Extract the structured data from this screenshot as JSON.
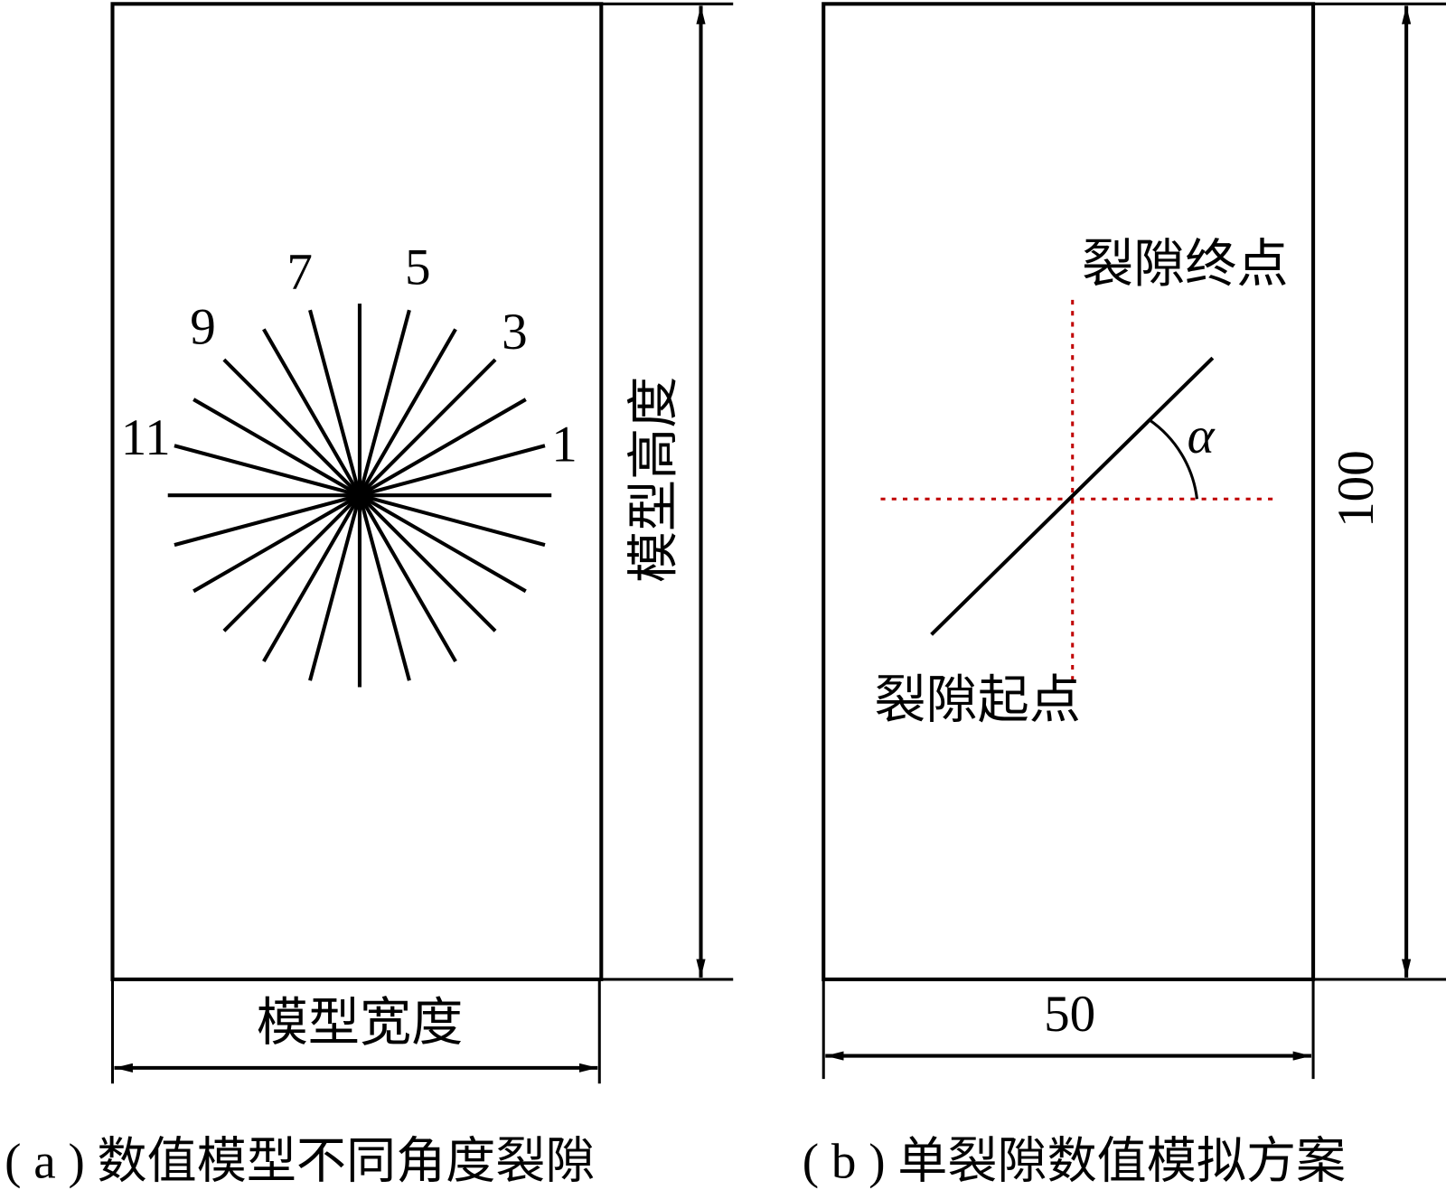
{
  "panel_a": {
    "angle_labels": [
      "1",
      "3",
      "5",
      "7",
      "9",
      "11"
    ],
    "height_label": "模型高度",
    "width_label": "模型宽度",
    "caption": "( a ) 数值模型不同角度裂隙"
  },
  "panel_b": {
    "end_label": "裂隙终点",
    "start_label": "裂隙起点",
    "angle_symbol": "α",
    "height_dim": "100",
    "width_dim": "50",
    "caption": "( b ) 单裂隙数值模拟方案"
  }
}
